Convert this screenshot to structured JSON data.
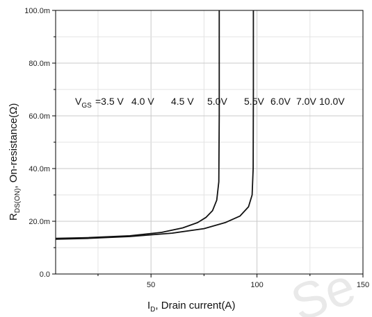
{
  "chart_data": {
    "type": "line",
    "xlabel": {
      "main": "I",
      "sub": "D",
      "rest": ", Drain current(A)"
    },
    "ylabel": {
      "main": "R",
      "sub": "DS(ON)",
      "rest": ", On-resistance(Ω)"
    },
    "xlim": [
      5,
      150
    ],
    "ylim": [
      0,
      0.1
    ],
    "x_ticks": [
      {
        "value": 50,
        "label": "50"
      },
      {
        "value": 100,
        "label": "100"
      },
      {
        "value": 150,
        "label": "150"
      }
    ],
    "y_ticks": [
      {
        "value": 0,
        "label": "0.0"
      },
      {
        "value": 0.02,
        "label": "20.0m"
      },
      {
        "value": 0.04,
        "label": "40.0m"
      },
      {
        "value": 0.06,
        "label": "60.0m"
      },
      {
        "value": 0.08,
        "label": "80.0m"
      },
      {
        "value": 0.1,
        "label": "100.0m"
      }
    ],
    "grid": true,
    "vgs_labels": {
      "prefix_main": "V",
      "prefix_sub": "GS",
      "values": [
        "=3.5 V",
        "4.0 V",
        "4.5 V",
        "5.0V",
        "5.5V",
        "6.0V",
        "7.0V",
        "10.0V"
      ]
    },
    "series": [
      {
        "x": [
          5,
          20,
          40,
          55,
          65,
          72,
          76,
          79,
          81,
          82,
          82.2,
          82.2
        ],
        "y": [
          0.0135,
          0.0138,
          0.0145,
          0.0158,
          0.0175,
          0.0195,
          0.0215,
          0.024,
          0.028,
          0.035,
          0.06,
          0.1
        ]
      },
      {
        "x": [
          5,
          20,
          40,
          60,
          75,
          85,
          92,
          96,
          97.7,
          98.2,
          98.3,
          98.3
        ],
        "y": [
          0.0132,
          0.0135,
          0.0142,
          0.0155,
          0.0172,
          0.0195,
          0.022,
          0.0255,
          0.03,
          0.04,
          0.07,
          0.1
        ]
      }
    ]
  },
  "watermark": "Se"
}
